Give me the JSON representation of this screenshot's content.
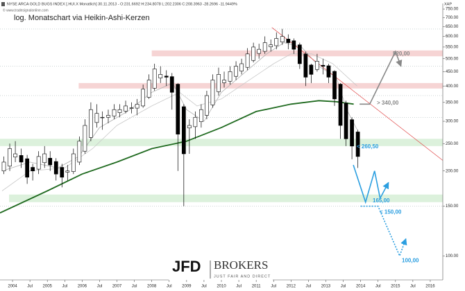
{
  "chart_data": {
    "type": "candlestick",
    "title": "NYSE ARCA GOLD BUGS INDEX [.HUI.X Monatlich] 30.11.2013 - O:231.6692 H:234.8078 L:202.2306 C:208.3963 -28.2696 -11.9449%",
    "currency": "XAP",
    "source": "© www.tradesignalonline.com",
    "subtitle": "log. Monatschart via Heikin-Ashi-Kerzen",
    "logo": {
      "brand": "JFD",
      "name": "BROKERS",
      "slogan": "JUST FAIR AND DIRECT"
    },
    "log_scale": true,
    "up_color": "#ffffff",
    "down_color": "#000000",
    "x": [
      2003.75,
      2003.92,
      2004.08,
      2004.25,
      2004.42,
      2004.58,
      2004.75,
      2004.92,
      2005.08,
      2005.25,
      2005.42,
      2005.58,
      2005.75,
      2005.92,
      2006.08,
      2006.25,
      2006.42,
      2006.58,
      2006.75,
      2006.92,
      2007.08,
      2007.25,
      2007.42,
      2007.58,
      2007.75,
      2007.92,
      2008.08,
      2008.25,
      2008.42,
      2008.58,
      2008.75,
      2008.92,
      2009.08,
      2009.25,
      2009.42,
      2009.58,
      2009.75,
      2009.92,
      2010.08,
      2010.25,
      2010.42,
      2010.58,
      2010.75,
      2010.92,
      2011.08,
      2011.25,
      2011.42,
      2011.58,
      2011.75,
      2011.92,
      2012.08,
      2012.25,
      2012.42,
      2012.58,
      2012.75,
      2012.92,
      2013.08,
      2013.25,
      2013.42,
      2013.58,
      2013.75,
      2013.92
    ],
    "ohlc": [
      [
        200,
        225,
        195,
        215
      ],
      [
        208,
        250,
        200,
        240
      ],
      [
        224,
        255,
        215,
        230
      ],
      [
        227,
        240,
        205,
        215
      ],
      [
        221,
        228,
        180,
        190
      ],
      [
        206,
        212,
        185,
        200
      ],
      [
        203,
        235,
        195,
        225
      ],
      [
        214,
        245,
        205,
        230
      ],
      [
        222,
        235,
        200,
        210
      ],
      [
        216,
        222,
        185,
        195
      ],
      [
        206,
        212,
        175,
        190
      ],
      [
        198,
        210,
        185,
        200
      ],
      [
        199,
        240,
        195,
        230
      ],
      [
        215,
        265,
        210,
        255
      ],
      [
        235,
        305,
        230,
        290
      ],
      [
        263,
        350,
        255,
        330
      ],
      [
        297,
        345,
        285,
        320
      ],
      [
        309,
        325,
        280,
        310
      ],
      [
        310,
        330,
        295,
        315
      ],
      [
        313,
        345,
        305,
        330
      ],
      [
        322,
        345,
        310,
        330
      ],
      [
        326,
        355,
        320,
        340
      ],
      [
        333,
        350,
        320,
        335
      ],
      [
        334,
        360,
        315,
        345
      ],
      [
        340,
        405,
        335,
        390
      ],
      [
        365,
        440,
        360,
        420
      ],
      [
        393,
        480,
        385,
        460
      ],
      [
        427,
        470,
        410,
        440
      ],
      [
        434,
        455,
        400,
        430
      ],
      [
        432,
        445,
        330,
        380
      ],
      [
        406,
        410,
        200,
        270
      ],
      [
        338,
        345,
        150,
        230
      ],
      [
        284,
        305,
        230,
        290
      ],
      [
        287,
        325,
        260,
        310
      ],
      [
        299,
        345,
        285,
        330
      ],
      [
        315,
        385,
        305,
        370
      ],
      [
        343,
        440,
        335,
        420
      ],
      [
        382,
        465,
        370,
        440
      ],
      [
        411,
        450,
        395,
        420
      ],
      [
        416,
        470,
        405,
        450
      ],
      [
        433,
        490,
        420,
        470
      ],
      [
        452,
        500,
        440,
        480
      ],
      [
        466,
        545,
        455,
        520
      ],
      [
        493,
        570,
        485,
        550
      ],
      [
        522,
        565,
        500,
        540
      ],
      [
        531,
        600,
        520,
        570
      ],
      [
        551,
        585,
        530,
        560
      ],
      [
        556,
        620,
        540,
        590
      ],
      [
        573,
        638,
        560,
        600
      ],
      [
        587,
        610,
        540,
        570
      ],
      [
        579,
        590,
        520,
        540
      ],
      [
        560,
        570,
        460,
        480
      ],
      [
        520,
        530,
        400,
        430
      ],
      [
        475,
        480,
        410,
        440
      ],
      [
        458,
        520,
        450,
        490
      ],
      [
        474,
        500,
        440,
        470
      ],
      [
        472,
        480,
        410,
        430
      ],
      [
        451,
        455,
        340,
        360
      ],
      [
        406,
        410,
        260,
        290
      ],
      [
        348,
        355,
        245,
        260
      ],
      [
        304,
        310,
        220,
        245
      ],
      [
        275,
        280,
        205,
        225
      ]
    ],
    "overlays": [
      {
        "color": "#1f6a1f",
        "line_width": 1.8,
        "x": [
          2003.64,
          2005,
          2006,
          2007,
          2008,
          2009,
          2010,
          2011,
          2012,
          2012.8,
          2013.3,
          2013.8
        ],
        "values": [
          142,
          170,
          195,
          215,
          240,
          255,
          285,
          325,
          345,
          355,
          352,
          345
        ]
      },
      {
        "color": "#b0b0b0",
        "line_width": 0.8,
        "x": [
          2003.7,
          2004.5,
          2005.3,
          2005.9,
          2006.5,
          2007.3,
          2008,
          2008.6,
          2009,
          2009.5,
          2010,
          2010.7,
          2011.3,
          2011.8,
          2012.3,
          2012.8,
          2013.3,
          2013.6,
          2013.9
        ],
        "values": [
          200,
          215,
          205,
          225,
          285,
          325,
          380,
          410,
          330,
          300,
          380,
          450,
          520,
          570,
          550,
          470,
          430,
          330,
          280
        ]
      },
      {
        "color": "#c8c8c8",
        "line_width": 0.8,
        "x": [
          2003.7,
          2004.5,
          2005.5,
          2006.3,
          2007,
          2008,
          2008.8,
          2009.3,
          2010,
          2010.8,
          2011.5,
          2012,
          2012.6,
          2013.2,
          2013.9
        ],
        "values": [
          170,
          200,
          205,
          240,
          290,
          340,
          380,
          340,
          360,
          420,
          480,
          520,
          520,
          480,
          400
        ]
      }
    ],
    "zones": [
      {
        "color": "#f4c9c9",
        "xlim": [
          2008,
          2016.36
        ],
        "ylim": [
          510,
          535
        ]
      },
      {
        "color": "#f4c9c9",
        "xlim": [
          2005.9,
          2016.36
        ],
        "ylim": [
          392,
          410
        ]
      },
      {
        "color": "#d3eed3",
        "xlim": [
          2003.64,
          2016.36
        ],
        "ylim": [
          245,
          260
        ]
      },
      {
        "color": "#d3eed3",
        "xlim": [
          2003.9,
          2016.36
        ],
        "ylim": [
          155,
          165
        ]
      }
    ],
    "levels": [
      637,
      470,
      370,
      310,
      150
    ],
    "trendline": {
      "color": "#e04848",
      "x": [
        2011.45,
        2016.36
      ],
      "values": [
        645,
        218
      ]
    },
    "projections": [
      {
        "color": "#888888",
        "dashed": false,
        "x": [
          2013.97,
          2014.26,
          2015.0,
          2015.16
        ],
        "values": [
          345,
          345,
          530,
          470
        ]
      },
      {
        "color": "#2a9ee0",
        "dashed": false,
        "x": [
          2013.79,
          2014.14,
          2014.4,
          2014.56,
          2014.8
        ],
        "values": [
          210,
          155,
          200,
          160,
          182
        ]
      },
      {
        "color": "#2a9ee0",
        "dashed": true,
        "x": [
          2014.0,
          2014.5,
          2015.12,
          2015.3
        ],
        "values": [
          150,
          150,
          100,
          115
        ]
      }
    ],
    "annotations": [
      {
        "text": "520,00",
        "value": 520,
        "color": "#888888"
      },
      {
        "text": "> 340,00",
        "value": 340,
        "color": "#888888"
      },
      {
        "text": "< 260,50",
        "value": 260.5,
        "color": "#2a9ee0"
      },
      {
        "text": "165,00",
        "value": 165,
        "color": "#2a9ee0"
      },
      {
        "text": "< 150,00",
        "value": 150,
        "color": "#2a9ee0"
      },
      {
        "text": "100,00",
        "value": 100,
        "color": "#2a9ee0"
      }
    ],
    "xlim": [
      2003.64,
      2016.36
    ],
    "xticks": [
      2004,
      {
        "value": 2004.5,
        "label": "Jul"
      },
      2005,
      {
        "value": 2005.5,
        "label": "Jul"
      },
      2006,
      {
        "value": 2006.5,
        "label": "Jul"
      },
      2007,
      {
        "value": 2007.5,
        "label": "Jul"
      },
      2008,
      {
        "value": 2008.5,
        "label": "Jul"
      },
      2009,
      {
        "value": 2009.5,
        "label": "Jul"
      },
      2010,
      {
        "value": 2010.5,
        "label": "Jul"
      },
      2011,
      {
        "value": 2011.5,
        "label": "Jul"
      },
      2012,
      {
        "value": 2012.5,
        "label": "Jul"
      },
      2013,
      {
        "value": 2013.5,
        "label": "Jul"
      },
      2014,
      {
        "value": 2014.5,
        "label": "Jul"
      },
      2015,
      {
        "value": 2015.5,
        "label": "Jul"
      },
      2016
    ],
    "ylim": [
      85,
      785
    ],
    "yticks": [
      {
        "value": 750,
        "label": "750.00"
      },
      {
        "value": 700,
        "label": "700.00"
      },
      {
        "value": 650,
        "label": "650.00"
      },
      {
        "value": 600,
        "label": "600.00"
      },
      {
        "value": 550,
        "label": "550.00"
      },
      {
        "value": 500,
        "label": "500.00"
      },
      {
        "value": 450,
        "label": "450.00"
      },
      {
        "value": 400,
        "label": "400.00"
      },
      {
        "value": 350,
        "label": "350.00"
      },
      {
        "value": 300,
        "label": "300.00"
      },
      {
        "value": 250,
        "label": "250.00"
      },
      {
        "value": 200,
        "label": "200.00"
      },
      {
        "value": 150,
        "label": "150.00"
      },
      {
        "value": 100,
        "label": "100.00"
      }
    ]
  }
}
